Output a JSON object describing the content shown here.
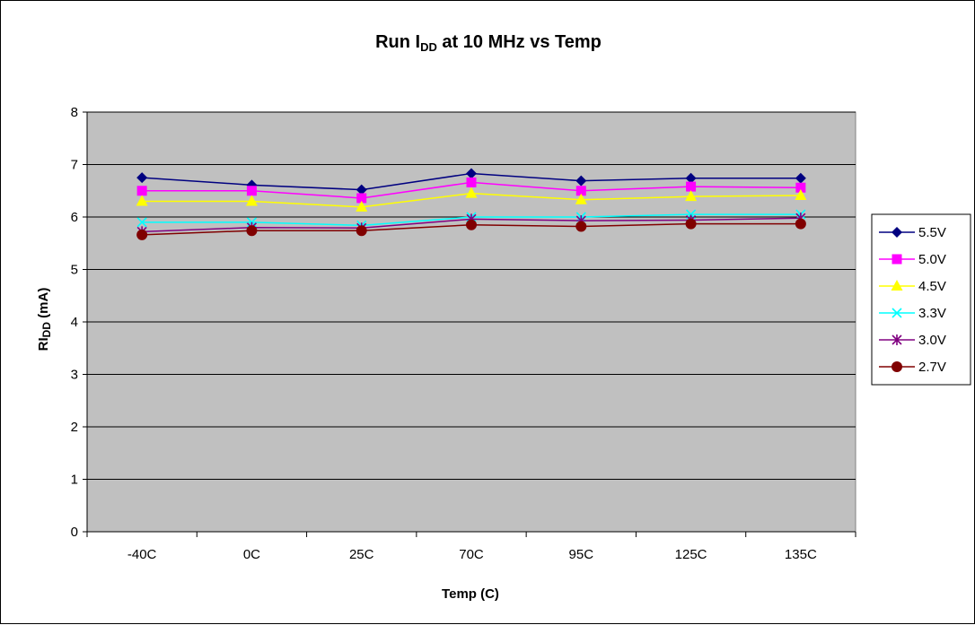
{
  "chart_data": {
    "type": "line",
    "title": {
      "pre": "Run I",
      "sub": "DD",
      "post": " at 10 MHz vs Temp"
    },
    "xlabel": "Temp (C)",
    "ylabel": {
      "pre": "RI",
      "sub": "DD",
      "post": " (mA)"
    },
    "categories": [
      "-40C",
      "0C",
      "25C",
      "70C",
      "95C",
      "125C",
      "135C"
    ],
    "ylim": [
      0,
      8
    ],
    "yticks": [
      "0",
      "1",
      "2",
      "3",
      "4",
      "5",
      "6",
      "7",
      "8"
    ],
    "grid": true,
    "legend_position": "right",
    "plot_background": "#c0c0c0",
    "series": [
      {
        "name": "5.5V",
        "color": "#000080",
        "marker": "diamond",
        "values": [
          6.75,
          6.61,
          6.52,
          6.83,
          6.69,
          6.74,
          6.74
        ]
      },
      {
        "name": "5.0V",
        "color": "#ff00ff",
        "marker": "square",
        "values": [
          6.5,
          6.5,
          6.36,
          6.66,
          6.5,
          6.58,
          6.56
        ]
      },
      {
        "name": "4.5V",
        "color": "#ffff00",
        "marker": "triangle",
        "values": [
          6.3,
          6.3,
          6.19,
          6.45,
          6.33,
          6.39,
          6.41
        ]
      },
      {
        "name": "3.3V",
        "color": "#00ffff",
        "marker": "x",
        "values": [
          5.9,
          5.9,
          5.84,
          6.0,
          6.0,
          6.05,
          6.05
        ]
      },
      {
        "name": "3.0V",
        "color": "#800080",
        "marker": "star",
        "values": [
          5.72,
          5.8,
          5.79,
          5.96,
          5.93,
          5.94,
          5.98
        ]
      },
      {
        "name": "2.7V",
        "color": "#800000",
        "marker": "circle",
        "values": [
          5.66,
          5.74,
          5.74,
          5.85,
          5.82,
          5.87,
          5.87
        ]
      }
    ]
  }
}
